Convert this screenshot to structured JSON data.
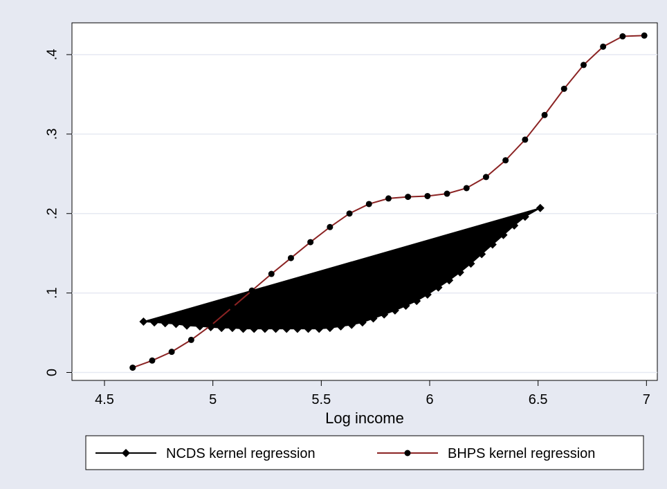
{
  "chart_data": {
    "type": "line",
    "title": "",
    "xlabel": "Log income",
    "ylabel": "",
    "xlim": [
      4.35,
      7.05
    ],
    "ylim": [
      -0.01,
      0.44
    ],
    "x_ticks": [
      4.5,
      5,
      5.5,
      6,
      6.5,
      7
    ],
    "x_tick_labels": [
      "4.5",
      "5",
      "5.5",
      "6",
      "6.5",
      "7"
    ],
    "y_ticks": [
      0,
      0.1,
      0.2,
      0.3,
      0.4
    ],
    "y_tick_labels": [
      "0",
      ".1",
      ".2",
      ".3",
      ".4"
    ],
    "grid": "horizontal",
    "legend_position": "bottom",
    "background": "#e6e9f2",
    "plot_background": "#ffffff",
    "series": [
      {
        "name": "NCDS kernel regression",
        "color": "#000000",
        "marker": "diamond",
        "fill": "closed-polygon",
        "x": [
          4.68,
          4.73,
          4.78,
          4.83,
          4.88,
          4.94,
          4.99,
          5.04,
          5.09,
          5.14,
          5.19,
          5.24,
          5.29,
          5.34,
          5.39,
          5.44,
          5.49,
          5.54,
          5.59,
          5.64,
          5.69,
          5.74,
          5.79,
          5.84,
          5.89,
          5.94,
          5.99,
          6.04,
          6.09,
          6.14,
          6.19,
          6.24,
          6.29,
          6.34,
          6.39,
          6.44,
          6.51
        ],
        "y": [
          0.064,
          0.063,
          0.062,
          0.061,
          0.059,
          0.058,
          0.057,
          0.056,
          0.056,
          0.055,
          0.055,
          0.055,
          0.055,
          0.055,
          0.055,
          0.055,
          0.055,
          0.056,
          0.058,
          0.06,
          0.063,
          0.068,
          0.073,
          0.078,
          0.084,
          0.09,
          0.098,
          0.107,
          0.116,
          0.126,
          0.137,
          0.149,
          0.161,
          0.173,
          0.185,
          0.196,
          0.207
        ]
      },
      {
        "name": "BHPS kernel regression",
        "color": "#8b2323",
        "marker": "circle",
        "x": [
          4.63,
          4.72,
          4.81,
          4.9,
          4.99,
          5.09,
          5.18,
          5.27,
          5.36,
          5.45,
          5.54,
          5.63,
          5.72,
          5.81,
          5.9,
          5.99,
          6.08,
          6.17,
          6.26,
          6.35,
          6.44,
          6.53,
          6.62,
          6.71,
          6.8,
          6.89,
          6.99
        ],
        "y": [
          0.006,
          0.015,
          0.026,
          0.041,
          0.059,
          0.082,
          0.103,
          0.124,
          0.144,
          0.164,
          0.183,
          0.2,
          0.212,
          0.219,
          0.221,
          0.222,
          0.225,
          0.232,
          0.246,
          0.267,
          0.293,
          0.324,
          0.357,
          0.387,
          0.41,
          0.423,
          0.424
        ]
      }
    ]
  }
}
